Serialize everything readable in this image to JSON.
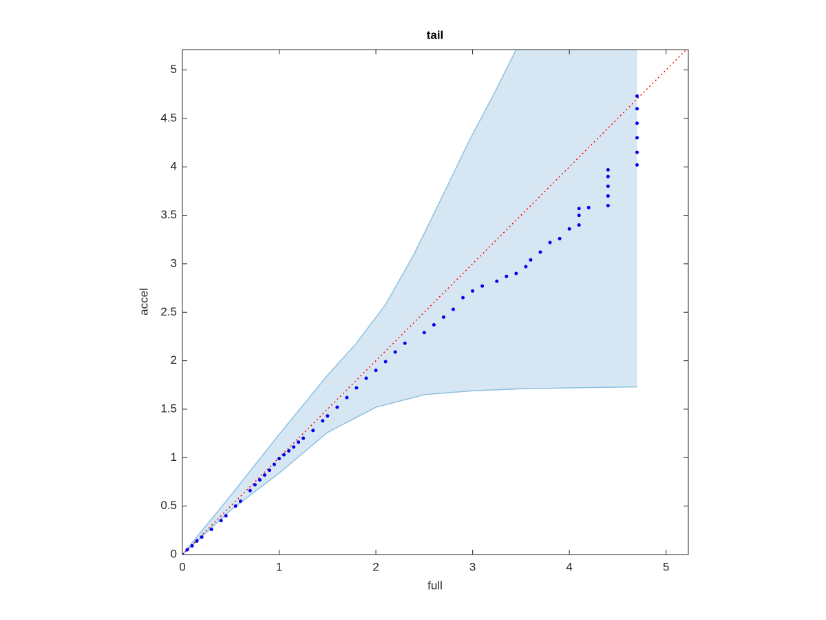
{
  "chart_data": {
    "type": "scatter",
    "title": "tail",
    "x_label": "full",
    "y_label": "accel",
    "xlim": [
      0,
      5.23
    ],
    "ylim": [
      0,
      5.21
    ],
    "xticks": [
      0,
      1,
      2,
      3,
      4,
      5
    ],
    "yticks": [
      0,
      0.5,
      1,
      1.5,
      2,
      2.5,
      3,
      3.5,
      4,
      4.5,
      5
    ],
    "identity_line": true,
    "identity_color": "#ff0000",
    "band": {
      "color": "#d6e7f3",
      "edge_color": "#8cc0e0",
      "x_upper": [
        0,
        0.5,
        1,
        1.5,
        1.79,
        2.1,
        2.39,
        2.67,
        2.96,
        3.24,
        3.45
      ],
      "upper": [
        0,
        0.61,
        1.24,
        1.85,
        2.17,
        2.58,
        3.09,
        3.66,
        4.26,
        4.79,
        5.21
      ],
      "x_lower": [
        0,
        0.5,
        1,
        1.5,
        2,
        2.5,
        3,
        3.5,
        4,
        4.7
      ],
      "lower": [
        0,
        0.46,
        0.84,
        1.26,
        1.52,
        1.65,
        1.69,
        1.71,
        1.72,
        1.73
      ]
    },
    "points": {
      "color": "#0000ee",
      "x": [
        0,
        0.05,
        0.1,
        0.15,
        0.2,
        0.3,
        0.4,
        0.45,
        0.55,
        0.6,
        0.7,
        0.75,
        0.8,
        0.85,
        0.9,
        0.95,
        1.0,
        1.05,
        1.1,
        1.15,
        1.2,
        1.25,
        1.35,
        1.45,
        1.5,
        1.6,
        1.7,
        1.8,
        1.9,
        2.0,
        2.1,
        2.2,
        2.3,
        2.5,
        2.6,
        2.7,
        2.8,
        2.9,
        3.0,
        3.1,
        3.25,
        3.35,
        3.45,
        3.55,
        3.6,
        3.7,
        3.8,
        3.9,
        4.0,
        4.1,
        4.1,
        4.1,
        4.2,
        4.4,
        4.4,
        4.4,
        4.4,
        4.4,
        4.7,
        4.7,
        4.7,
        4.7,
        4.7,
        4.7
      ],
      "y": [
        0,
        0.05,
        0.09,
        0.14,
        0.18,
        0.26,
        0.35,
        0.4,
        0.5,
        0.55,
        0.66,
        0.72,
        0.77,
        0.82,
        0.87,
        0.93,
        0.99,
        1.03,
        1.07,
        1.11,
        1.16,
        1.2,
        1.28,
        1.38,
        1.43,
        1.52,
        1.62,
        1.72,
        1.82,
        1.9,
        1.99,
        2.09,
        2.18,
        2.29,
        2.37,
        2.45,
        2.53,
        2.65,
        2.72,
        2.77,
        2.82,
        2.87,
        2.9,
        2.97,
        3.04,
        3.12,
        3.22,
        3.26,
        3.36,
        3.4,
        3.5,
        3.57,
        3.58,
        3.6,
        3.7,
        3.8,
        3.9,
        3.97,
        4.02,
        4.15,
        4.3,
        4.45,
        4.6,
        4.73
      ]
    }
  }
}
